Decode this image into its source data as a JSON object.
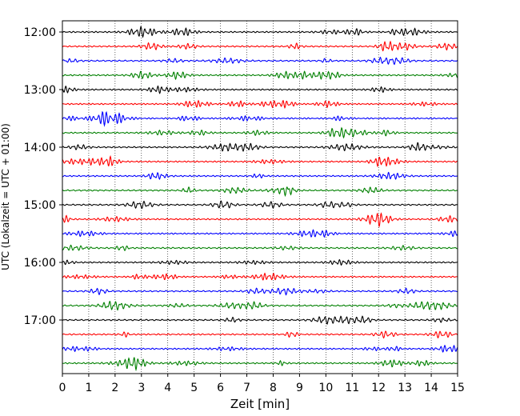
{
  "chart_data": {
    "type": "line",
    "title": "",
    "xlabel": "Zeit  [min]",
    "ylabel": "UTC (Lokalzeit = UTC + 01:00)",
    "xlim": [
      0,
      15
    ],
    "x_ticks": [
      "0",
      "1",
      "2",
      "3",
      "4",
      "5",
      "6",
      "7",
      "8",
      "9",
      "10",
      "11",
      "12",
      "13",
      "14",
      "15"
    ],
    "y_ticks": [
      "12:00",
      "13:00",
      "14:00",
      "15:00",
      "16:00",
      "17:00"
    ],
    "grid": "vertical dotted",
    "legend": "none",
    "trace_interval_min": 15,
    "trace_count": 24,
    "trace_colors": [
      "#000000",
      "#ff0000",
      "#0000ff",
      "#008000"
    ],
    "series": [
      {
        "start": "12:00",
        "color": "#000000"
      },
      {
        "start": "12:15",
        "color": "#ff0000"
      },
      {
        "start": "12:30",
        "color": "#0000ff"
      },
      {
        "start": "12:45",
        "color": "#008000"
      },
      {
        "start": "13:00",
        "color": "#000000"
      },
      {
        "start": "13:15",
        "color": "#ff0000"
      },
      {
        "start": "13:30",
        "color": "#0000ff"
      },
      {
        "start": "13:45",
        "color": "#008000"
      },
      {
        "start": "14:00",
        "color": "#000000"
      },
      {
        "start": "14:15",
        "color": "#ff0000"
      },
      {
        "start": "14:30",
        "color": "#0000ff"
      },
      {
        "start": "14:45",
        "color": "#008000"
      },
      {
        "start": "15:00",
        "color": "#000000"
      },
      {
        "start": "15:15",
        "color": "#ff0000"
      },
      {
        "start": "15:30",
        "color": "#0000ff"
      },
      {
        "start": "15:45",
        "color": "#008000"
      },
      {
        "start": "16:00",
        "color": "#000000"
      },
      {
        "start": "16:15",
        "color": "#ff0000"
      },
      {
        "start": "16:30",
        "color": "#0000ff"
      },
      {
        "start": "16:45",
        "color": "#008000"
      },
      {
        "start": "17:00",
        "color": "#000000"
      },
      {
        "start": "17:15",
        "color": "#ff0000"
      },
      {
        "start": "17:30",
        "color": "#0000ff"
      },
      {
        "start": "17:45",
        "color": "#008000"
      }
    ]
  }
}
